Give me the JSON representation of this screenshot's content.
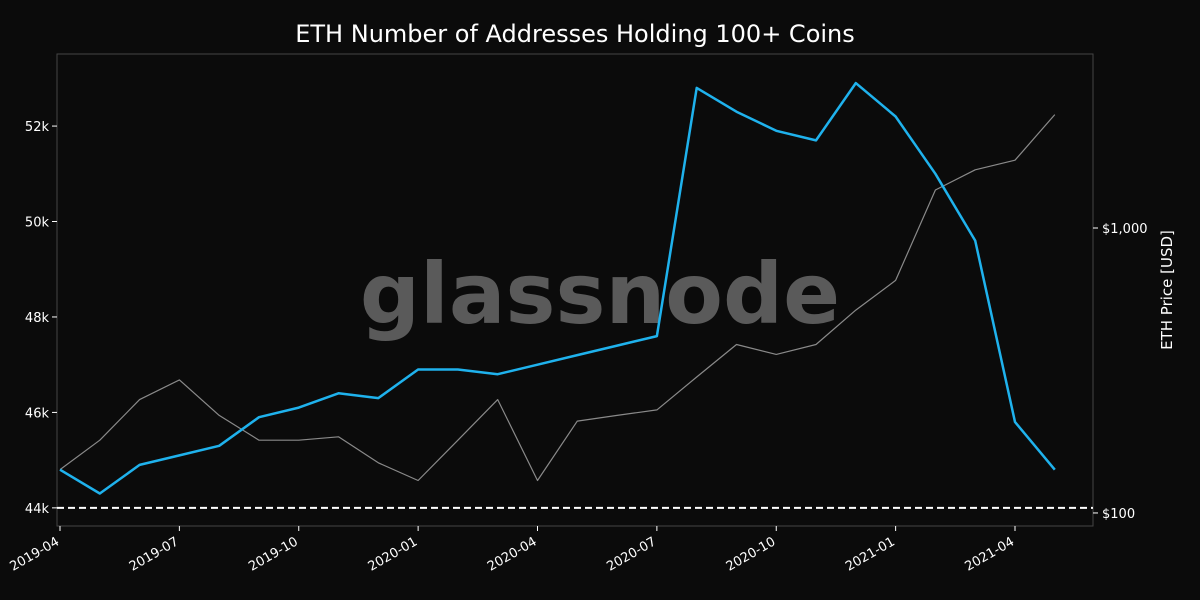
{
  "chart_data": {
    "type": "line",
    "title": "ETH Number of Addresses Holding 100+ Coins",
    "watermark": "glassnode",
    "y2_label": "ETH Price [USD]",
    "x": [
      "2019-04",
      "2019-05",
      "2019-06",
      "2019-07",
      "2019-08",
      "2019-09",
      "2019-10",
      "2019-11",
      "2019-12",
      "2020-01",
      "2020-02",
      "2020-03",
      "2020-04",
      "2020-05",
      "2020-06",
      "2020-07",
      "2020-08",
      "2020-09",
      "2020-10",
      "2020-11",
      "2020-12",
      "2021-01",
      "2021-02",
      "2021-03",
      "2021-04",
      "2021-05"
    ],
    "xticks": [
      "2019-04",
      "2019-07",
      "2019-10",
      "2020-01",
      "2020-04",
      "2020-07",
      "2020-10",
      "2021-01",
      "2021-04"
    ],
    "series": [
      {
        "name": "Addresses",
        "color": "#1fb2ed",
        "axis": "y",
        "values": [
          44800,
          44300,
          44900,
          45100,
          45300,
          45900,
          46100,
          46400,
          46300,
          46900,
          46900,
          46800,
          47000,
          47200,
          47400,
          47600,
          52800,
          52300,
          51900,
          51700,
          52900,
          52200,
          51000,
          49600,
          45800,
          44800
        ]
      },
      {
        "name": "Price",
        "color": "#8a8a8a",
        "axis": "y2",
        "values": [
          142,
          180,
          250,
          293,
          220,
          180,
          180,
          185,
          150,
          130,
          180,
          250,
          130,
          210,
          220,
          230,
          300,
          390,
          360,
          390,
          515,
          655,
          1360,
          1600,
          1730,
          2500
        ]
      }
    ],
    "ylim": [
      43620,
      53510
    ],
    "yticks": [
      {
        "value": 44000,
        "label": "44k"
      },
      {
        "value": 46000,
        "label": "46k"
      },
      {
        "value": 48000,
        "label": "48k"
      },
      {
        "value": 50000,
        "label": "50k"
      },
      {
        "value": 52000,
        "label": "52k"
      }
    ],
    "y2lim": [
      90,
      4080
    ],
    "y2scale": "log",
    "y2ticks": [
      {
        "value": 100,
        "label": "$100"
      },
      {
        "value": 1000,
        "label": "$1,000"
      }
    ],
    "reference_line": 44000
  }
}
